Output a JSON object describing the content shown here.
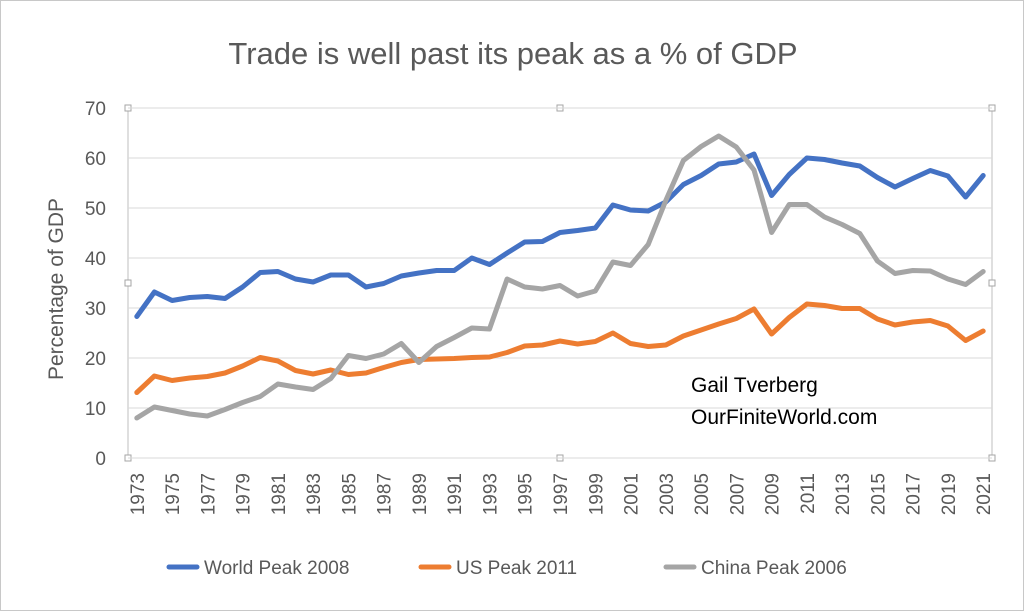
{
  "chart_data": {
    "type": "line",
    "title": "Trade is well past its peak as a % of GDP",
    "ylabel": "Percentage of GDP",
    "xlabel": "",
    "ylim": [
      0,
      70
    ],
    "yticks": [
      0,
      10,
      20,
      30,
      40,
      50,
      60,
      70
    ],
    "xtick_labels": [
      "1973",
      "1975",
      "1977",
      "1979",
      "1981",
      "1983",
      "1985",
      "1987",
      "1989",
      "1991",
      "1993",
      "1995",
      "1997",
      "1999",
      "2001",
      "2003",
      "2005",
      "2007",
      "2009",
      "2011",
      "2013",
      "2015",
      "2017",
      "2019",
      "2021"
    ],
    "grid": "horizontal",
    "legend_position": "bottom",
    "x": [
      1973,
      1974,
      1975,
      1976,
      1977,
      1978,
      1979,
      1980,
      1981,
      1982,
      1983,
      1984,
      1985,
      1986,
      1987,
      1988,
      1989,
      1990,
      1991,
      1992,
      1993,
      1994,
      1995,
      1996,
      1997,
      1998,
      1999,
      2000,
      2001,
      2002,
      2003,
      2004,
      2005,
      2006,
      2007,
      2008,
      2009,
      2010,
      2011,
      2012,
      2013,
      2014,
      2015,
      2016,
      2017,
      2018,
      2019,
      2020,
      2021
    ],
    "series": [
      {
        "name": "World Peak 2008",
        "color": "#4472c4",
        "values": [
          28.3,
          33.2,
          31.5,
          32.1,
          32.3,
          31.9,
          34.2,
          37.1,
          37.3,
          35.8,
          35.2,
          36.6,
          36.6,
          34.2,
          34.9,
          36.4,
          37.0,
          37.5,
          37.5,
          40.0,
          38.7,
          41.0,
          43.2,
          43.3,
          45.1,
          45.5,
          46.0,
          50.6,
          49.6,
          49.4,
          51.2,
          54.7,
          56.5,
          58.8,
          59.2,
          60.8,
          52.5,
          56.7,
          60.0,
          59.7,
          59.0,
          58.4,
          56.1,
          54.2,
          55.9,
          57.5,
          56.4,
          52.2,
          56.5
        ]
      },
      {
        "name": "US Peak 2011",
        "color": "#ed7d31",
        "values": [
          13.1,
          16.4,
          15.5,
          16.0,
          16.3,
          17.0,
          18.4,
          20.1,
          19.4,
          17.5,
          16.8,
          17.6,
          16.7,
          17.0,
          18.1,
          19.1,
          19.7,
          19.8,
          19.9,
          20.1,
          20.2,
          21.1,
          22.4,
          22.6,
          23.4,
          22.8,
          23.3,
          25.0,
          22.9,
          22.3,
          22.6,
          24.4,
          25.6,
          26.8,
          27.9,
          29.8,
          24.8,
          28.1,
          30.8,
          30.5,
          29.9,
          29.9,
          27.8,
          26.6,
          27.2,
          27.5,
          26.4,
          23.5,
          25.4
        ]
      },
      {
        "name": "China Peak 2006",
        "color": "#a5a5a5",
        "values": [
          8.0,
          10.2,
          9.5,
          8.8,
          8.4,
          9.7,
          11.1,
          12.3,
          14.8,
          14.2,
          13.7,
          15.9,
          20.5,
          19.9,
          20.8,
          22.9,
          19.1,
          22.3,
          24.1,
          26.0,
          25.8,
          35.8,
          34.2,
          33.8,
          34.5,
          32.4,
          33.4,
          39.2,
          38.5,
          42.7,
          51.5,
          59.5,
          62.3,
          64.4,
          62.2,
          57.6,
          45.1,
          50.7,
          50.7,
          48.2,
          46.7,
          44.9,
          39.4,
          36.9,
          37.5,
          37.4,
          35.8,
          34.7,
          37.3
        ]
      }
    ]
  },
  "annotation": {
    "line1": "Gail Tverberg",
    "line2": "OurFiniteWorld.com"
  }
}
